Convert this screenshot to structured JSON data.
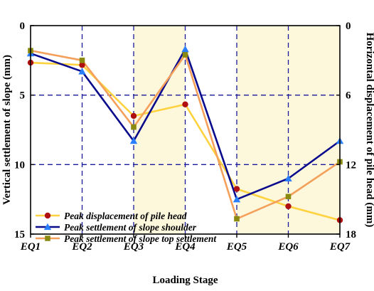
{
  "chart_data": {
    "type": "line",
    "categories": [
      "EQ1",
      "EQ2",
      "EQ3",
      "EQ4",
      "EQ5",
      "EQ6",
      "EQ7"
    ],
    "xlabel": "Loading Stage",
    "ylabel": "Vertical settlement of slope (mm)",
    "y2label": "Horizontal displacement of pile head (mm)",
    "ylim": [
      0,
      15
    ],
    "y_inverted": true,
    "yticks": [
      "0",
      "5",
      "10",
      "15"
    ],
    "y2lim": [
      0,
      18
    ],
    "y2_inverted": true,
    "y2ticks": [
      "0",
      "6",
      "12",
      "18"
    ],
    "grid": "dashed, dark blue",
    "shaded_regions": [
      [
        "EQ3",
        "EQ4"
      ],
      [
        "EQ5",
        "EQ7"
      ]
    ],
    "shade_color": "#fdf7dc",
    "legend_position": "bottom-left",
    "series": [
      {
        "name": "Peak displacement of pile head",
        "axis": "right",
        "line_color": "#ffd23f",
        "marker": "circle",
        "marker_color": "#b01010",
        "values": [
          3.2,
          3.4,
          7.8,
          6.8,
          14.1,
          15.6,
          16.8
        ]
      },
      {
        "name": "Peak settlement of slope shoulder",
        "axis": "left",
        "line_color": "#0a0a8c",
        "marker": "triangle",
        "marker_color": "#2a7fff",
        "values": [
          2.0,
          3.3,
          8.3,
          1.7,
          12.5,
          11.0,
          8.3
        ]
      },
      {
        "name": "Peak settlement of slope top settlement",
        "axis": "left",
        "line_color": "#f5a05a",
        "marker": "square",
        "marker_color": "#8a8a10",
        "values": [
          1.8,
          2.5,
          7.3,
          2.1,
          13.9,
          12.3,
          9.8
        ]
      }
    ]
  }
}
